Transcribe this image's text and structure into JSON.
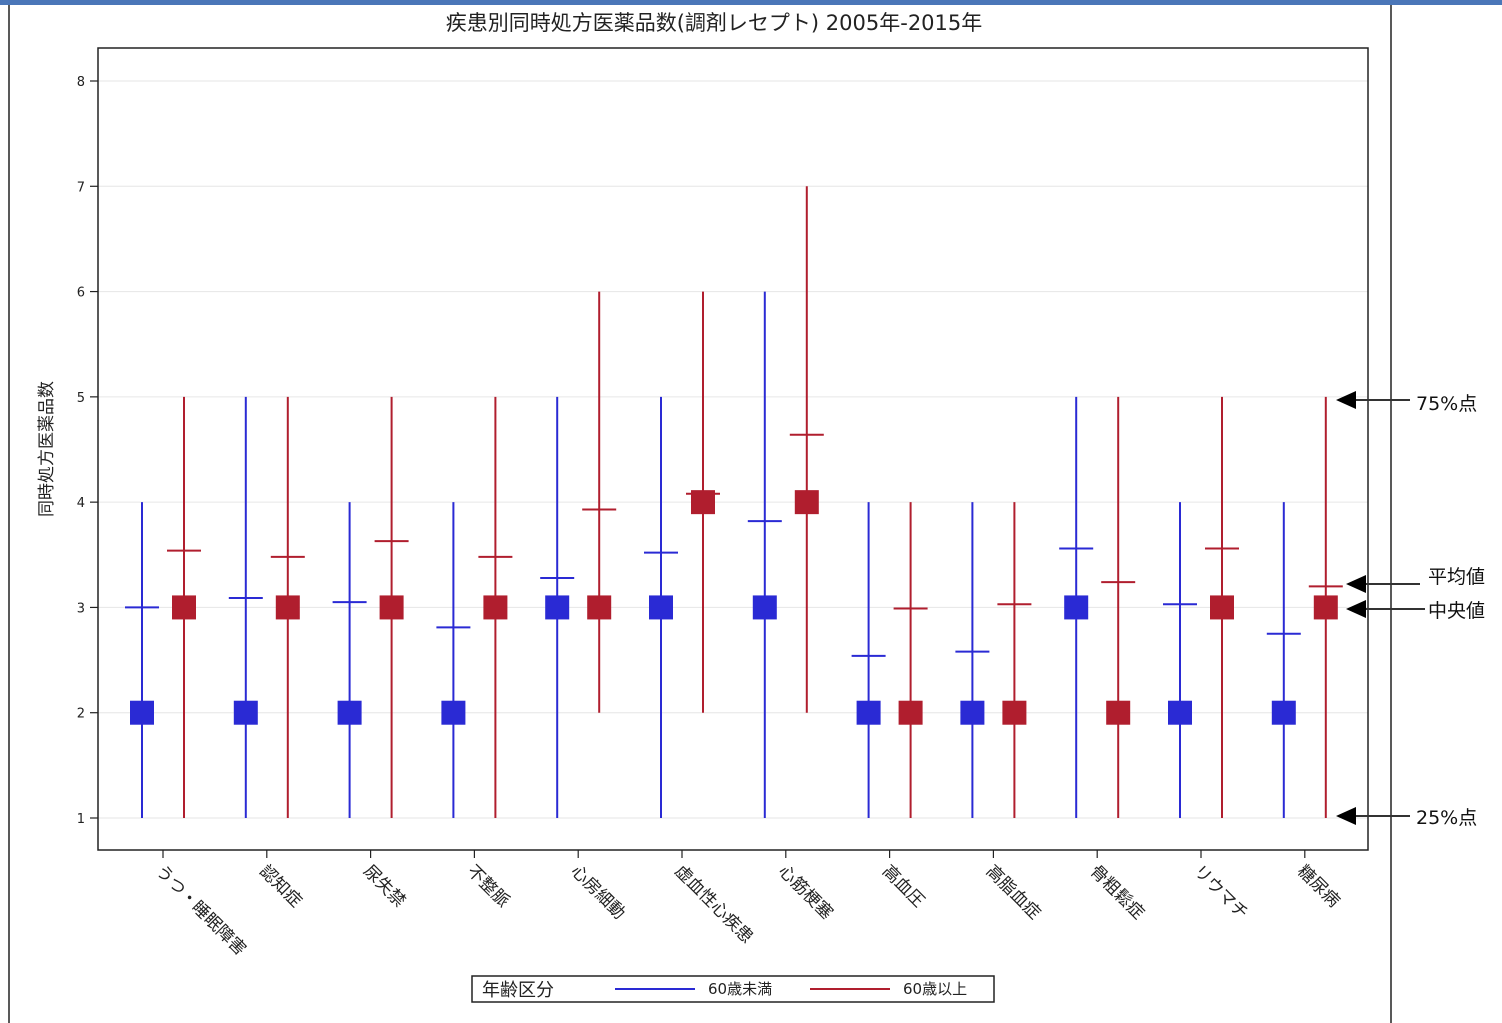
{
  "chart_data": {
    "type": "box",
    "title": "疾患別同時処方医薬品数(調剤レセプト) 2005年-2015年",
    "ylabel": "同時処方医薬品数",
    "xlabel": "",
    "ylim": [
      1,
      8
    ],
    "yticks": [
      "1",
      "2",
      "3",
      "4",
      "5",
      "6",
      "7",
      "8"
    ],
    "grid": true,
    "categories": [
      "うつ・睡眠障害",
      "認知症",
      "尿失禁",
      "不整脈",
      "心房細動",
      "虚血性心疾患",
      "心筋梗塞",
      "高血圧",
      "高脂血症",
      "骨粗鬆症",
      "リウマチ",
      "糖尿病"
    ],
    "legend": {
      "title": "年齢区分",
      "position": "bottom"
    },
    "series": [
      {
        "name": "60歳未満",
        "color": "#2a2ad4",
        "q1": [
          1,
          1,
          1,
          1,
          1,
          1,
          1,
          1,
          1,
          1,
          1,
          1
        ],
        "q3": [
          4,
          5,
          4,
          4,
          5,
          5,
          6,
          4,
          4,
          5,
          4,
          4
        ],
        "median": [
          2,
          2,
          2,
          2,
          3,
          3,
          3,
          2,
          2,
          3,
          2,
          2
        ],
        "mean": [
          3.0,
          3.09,
          3.05,
          2.81,
          3.28,
          3.52,
          3.82,
          2.54,
          2.58,
          3.56,
          3.03,
          2.75
        ]
      },
      {
        "name": "60歳以上",
        "color": "#b01e2e",
        "q1": [
          1,
          1,
          1,
          1,
          2,
          2,
          2,
          1,
          1,
          1,
          1,
          1
        ],
        "q3": [
          5,
          5,
          5,
          5,
          6,
          6,
          7,
          4,
          4,
          5,
          5,
          5
        ],
        "median": [
          3,
          3,
          3,
          3,
          3,
          4,
          4,
          2,
          2,
          2,
          3,
          3
        ],
        "mean": [
          3.54,
          3.48,
          3.63,
          3.48,
          3.93,
          4.08,
          4.64,
          2.99,
          3.03,
          3.24,
          3.56,
          3.2
        ]
      }
    ],
    "annotations": {
      "q3": "75%点",
      "mean": "平均値",
      "median": "中央値",
      "q1": "25%点"
    }
  }
}
